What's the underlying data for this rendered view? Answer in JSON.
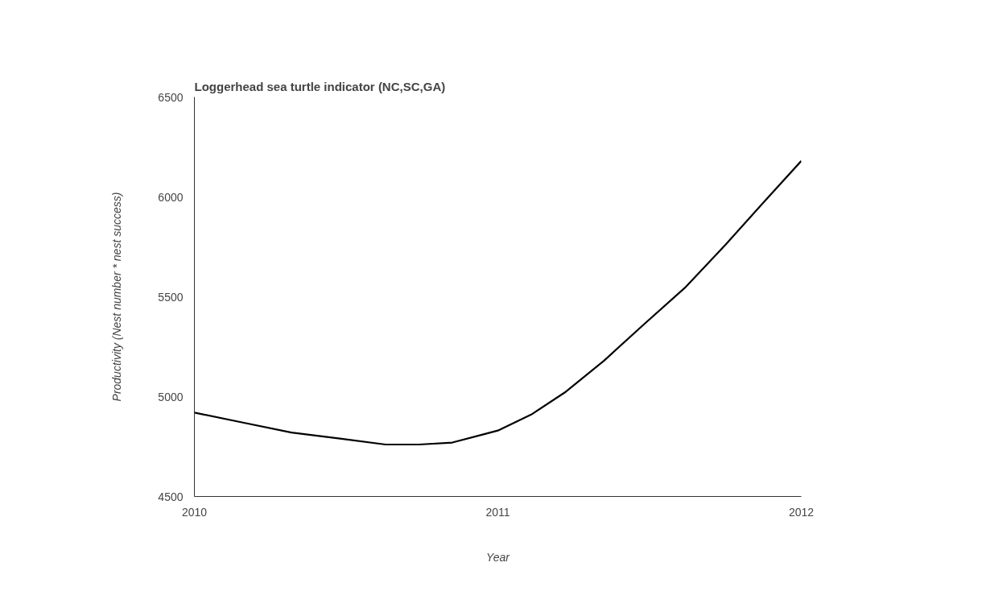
{
  "chart_data": {
    "type": "line",
    "title": "Loggerhead sea turtle indicator (NC,SC,GA)",
    "xlabel": "Year",
    "ylabel": "Productivity (Nest number * nest success)",
    "x": [
      2010,
      2010.16,
      2010.32,
      2010.48,
      2010.63,
      2010.74,
      2010.85,
      2010.95,
      2011,
      2011.11,
      2011.22,
      2011.35,
      2011.48,
      2011.62,
      2011.75,
      2011.88,
      2012
    ],
    "series": [
      {
        "color": "#000000",
        "values": [
          4920,
          4870,
          4820,
          4790,
          4760,
          4760,
          4770,
          4810,
          4830,
          4910,
          5020,
          5180,
          5360,
          5550,
          5760,
          5980,
          6180
        ]
      }
    ],
    "xlim": [
      2010,
      2012
    ],
    "xticks": [
      2010,
      2011,
      2012
    ],
    "ylim": [
      4500,
      6500
    ],
    "yticks": [
      4500,
      5000,
      5500,
      6000,
      6500
    ],
    "grid": false,
    "marker": "none",
    "line_style": "solid"
  }
}
